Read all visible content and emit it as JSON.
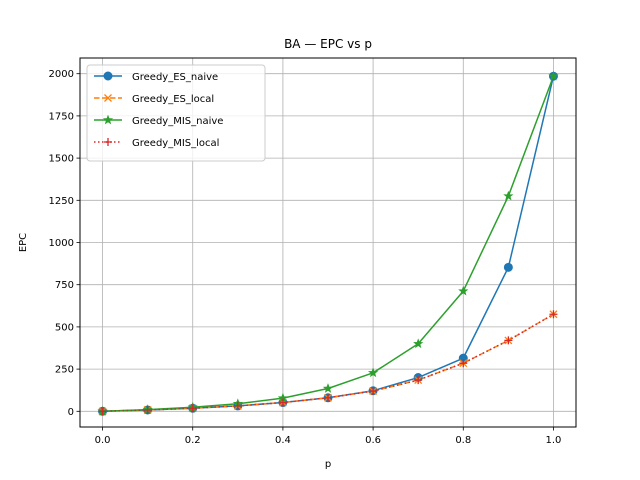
{
  "chart_data": {
    "type": "line",
    "title": "BA — EPC vs p",
    "xlabel": "p",
    "ylabel": "EPC",
    "xlim": [
      -0.05,
      1.05
    ],
    "ylim": [
      -93,
      2093
    ],
    "xticks": [
      0.0,
      0.2,
      0.4,
      0.6,
      0.8,
      1.0
    ],
    "xtick_labels": [
      "0.0",
      "0.2",
      "0.4",
      "0.6",
      "0.8",
      "1.0"
    ],
    "yticks": [
      0,
      250,
      500,
      750,
      1000,
      1250,
      1500,
      1750,
      2000
    ],
    "ytick_labels": [
      "0",
      "250",
      "500",
      "750",
      "1000",
      "1250",
      "1500",
      "1750",
      "2000"
    ],
    "grid": true,
    "legend_position": "upper-left",
    "x": [
      0.0,
      0.1,
      0.2,
      0.3,
      0.4,
      0.5,
      0.6,
      0.7,
      0.8,
      0.9,
      1.0
    ],
    "series": [
      {
        "name": "Greedy_ES_naive",
        "color": "#1f77b4",
        "line_style": "solid",
        "marker": "circle",
        "values": [
          0,
          8,
          18,
          32,
          52,
          80,
          122,
          200,
          315,
          853,
          1985
        ]
      },
      {
        "name": "Greedy_ES_local",
        "color": "#ff7f0e",
        "line_style": "dashed",
        "marker": "x",
        "values": [
          0,
          8,
          18,
          32,
          52,
          80,
          120,
          185,
          285,
          420,
          575
        ]
      },
      {
        "name": "Greedy_MIS_naive",
        "color": "#2ca02c",
        "line_style": "solid",
        "marker": "star",
        "values": [
          0,
          10,
          24,
          45,
          78,
          135,
          228,
          400,
          712,
          1275,
          1985
        ]
      },
      {
        "name": "Greedy_MIS_local",
        "color": "#d62728",
        "line_style": "dotted",
        "marker": "plus",
        "values": [
          0,
          8,
          18,
          32,
          52,
          80,
          120,
          185,
          285,
          420,
          575
        ]
      }
    ]
  }
}
